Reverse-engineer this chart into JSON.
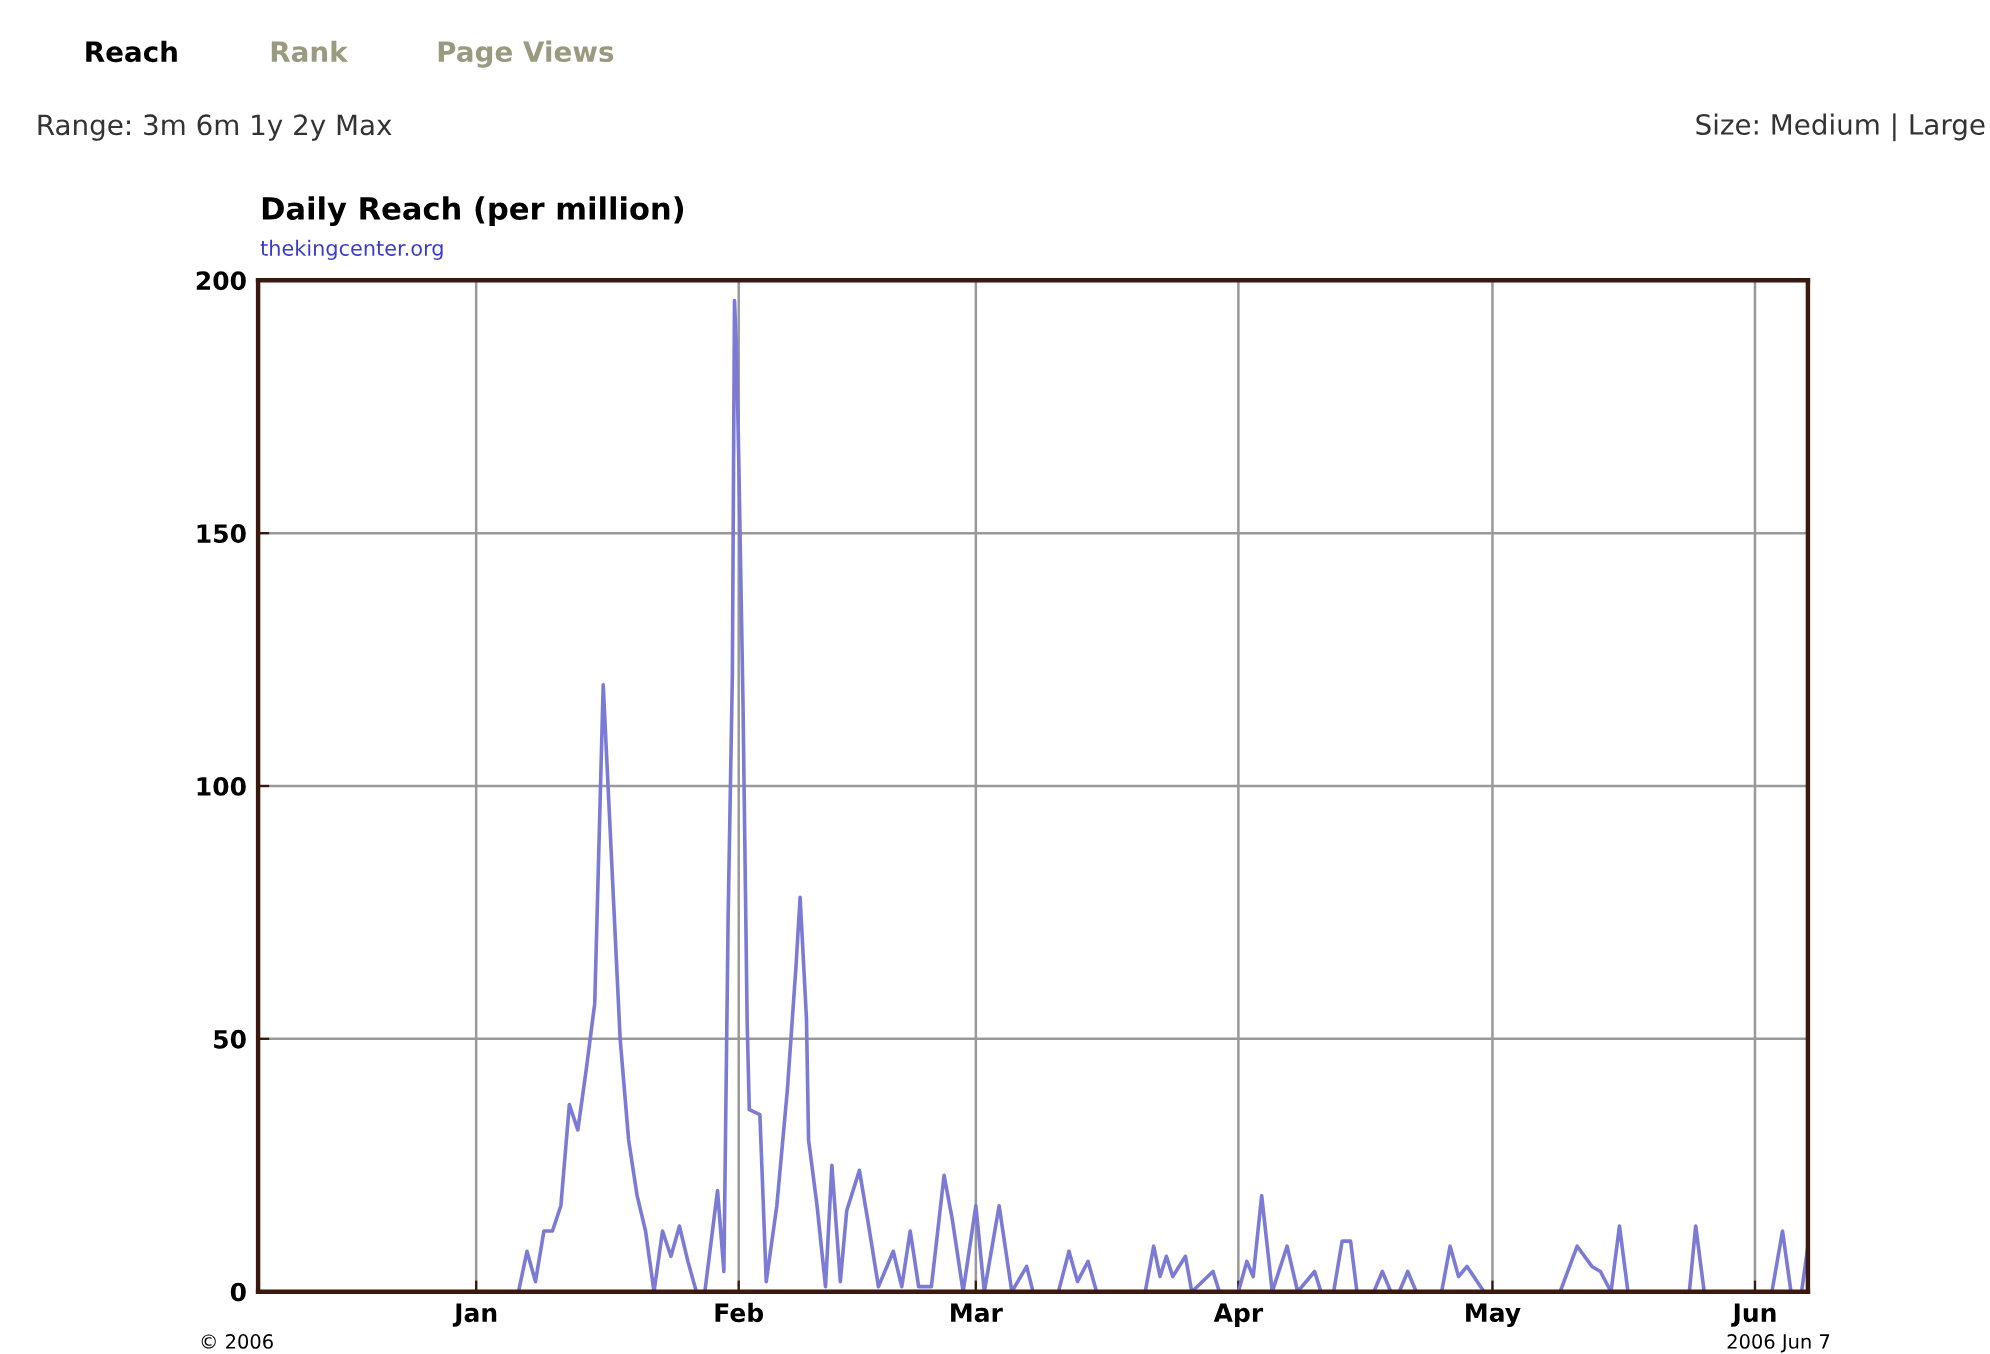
{
  "chart_data": {
    "type": "line",
    "title": "Daily Reach (per million)",
    "subtitle": "thekingcenter.org",
    "annotations": [
      "Reach",
      "Rank",
      "Page Views",
      "Range: 3m 6m 1y 2y Max",
      "Size: Medium | Large",
      "© 2006",
      "2006 Jun 7"
    ],
    "xlim": [
      "2005-12-06T06:00",
      "2006-06-07T06:00"
    ],
    "xticks": [
      {
        "value": "2006-01-01",
        "label": "Jan"
      },
      {
        "value": "2006-02-01",
        "label": "Feb"
      },
      {
        "value": "2006-03-01",
        "label": "Mar"
      },
      {
        "value": "2006-04-01",
        "label": "Apr"
      },
      {
        "value": "2006-05-01",
        "label": "May"
      },
      {
        "value": "2006-06-01",
        "label": "Jun"
      }
    ],
    "ylim": [
      0,
      200
    ],
    "yticks": [
      0,
      50,
      100,
      150,
      200
    ],
    "grid": true,
    "marker": "none",
    "line_style": "solid",
    "series": [
      {
        "color": "#7b7bd6",
        "x": [
          "2005-12-06T06:00",
          "2006-01-06",
          "2006-01-07",
          "2006-01-08",
          "2006-01-09",
          "2006-01-10",
          "2006-01-11",
          "2006-01-12",
          "2006-01-13",
          "2006-01-14",
          "2006-01-15",
          "2006-01-16",
          "2006-01-17",
          "2006-01-18",
          "2006-01-19",
          "2006-01-20",
          "2006-01-21",
          "2006-01-22",
          "2006-01-23",
          "2006-01-24",
          "2006-01-25",
          "2006-01-26",
          "2006-01-27",
          "2006-01-28",
          "2006-01-29T12:00",
          "2006-01-30T06:00",
          "2006-01-30T18:00",
          "2006-01-31T06:00",
          "2006-01-31T12:00",
          "2006-01-31T18:00",
          "2006-02-01",
          "2006-02-01T12:00",
          "2006-02-02",
          "2006-02-02T06:00",
          "2006-02-03T12:00",
          "2006-02-04T06:00",
          "2006-02-05T12:00",
          "2006-02-06T18:00",
          "2006-02-07T18:00",
          "2006-02-08T06:00",
          "2006-02-09",
          "2006-02-09T06:00",
          "2006-02-10T06:00",
          "2006-02-11T06:00",
          "2006-02-12",
          "2006-02-13",
          "2006-02-13T18:00",
          "2006-02-15T06:00",
          "2006-02-16T06:00",
          "2006-02-17T12:00",
          "2006-02-19T06:00",
          "2006-02-20T06:00",
          "2006-02-21T06:00",
          "2006-02-22T06:00",
          "2006-02-23T18:00",
          "2006-02-25T06:00",
          "2006-02-26T06:00",
          "2006-02-27T12:00",
          "2006-03-01",
          "2006-03-02",
          "2006-03-03T18:00",
          "2006-03-05T06:00",
          "2006-03-07",
          "2006-03-07T18:00",
          "2006-03-10T18:00",
          "2006-03-12",
          "2006-03-13",
          "2006-03-14T06:00",
          "2006-03-15T06:00",
          "2006-03-21",
          "2006-03-22",
          "2006-03-22T18:00",
          "2006-03-23T12:00",
          "2006-03-24T06:00",
          "2006-03-25T18:00",
          "2006-03-26T12:00",
          "2006-03-29",
          "2006-03-29T18:00",
          "2006-04-01",
          "2006-04-02",
          "2006-04-02T18:00",
          "2006-04-03T18:00",
          "2006-04-05",
          "2006-04-06T18:00",
          "2006-04-08",
          "2006-04-10",
          "2006-04-10T18:00",
          "2006-04-12T06:00",
          "2006-04-13T06:00",
          "2006-04-14T06:00",
          "2006-04-15",
          "2006-04-17",
          "2006-04-18",
          "2006-04-19",
          "2006-04-20",
          "2006-04-21",
          "2006-04-22",
          "2006-04-25",
          "2006-04-26",
          "2006-04-27",
          "2006-04-28",
          "2006-04-30",
          "2006-05-09",
          "2006-05-11",
          "2006-05-12T18:00",
          "2006-05-13T18:00",
          "2006-05-15",
          "2006-05-16",
          "2006-05-17",
          "2006-05-24T06:00",
          "2006-05-25",
          "2006-05-26",
          "2006-06-03",
          "2006-06-04T06:00",
          "2006-06-05T06:00",
          "2006-06-06T12:00",
          "2006-06-07T06:00"
        ],
        "values": [
          0,
          0,
          8,
          2,
          12,
          12,
          17,
          37,
          32,
          44,
          57,
          120,
          85,
          50,
          30,
          19,
          12,
          0,
          12,
          7,
          13,
          6,
          0,
          0,
          20,
          4,
          74,
          122,
          196,
          186,
          165,
          117,
          53,
          36,
          35,
          2,
          17,
          40,
          64,
          78,
          54,
          30,
          17,
          1,
          25,
          2,
          16,
          24,
          14,
          1,
          8,
          1,
          12,
          1,
          1,
          23,
          14,
          0,
          17,
          0,
          17,
          0,
          5,
          0,
          0,
          8,
          2,
          6,
          0,
          0,
          9,
          3,
          7,
          3,
          7,
          0,
          4,
          0,
          0,
          6,
          3,
          19,
          0,
          9,
          0,
          4,
          0,
          0,
          10,
          10,
          0,
          0,
          4,
          0,
          0,
          4,
          0,
          0,
          9,
          3,
          5,
          0,
          0,
          9,
          5,
          4,
          0,
          13,
          0,
          0,
          13,
          0,
          0,
          12,
          0,
          0,
          9
        ]
      }
    ]
  }
}
